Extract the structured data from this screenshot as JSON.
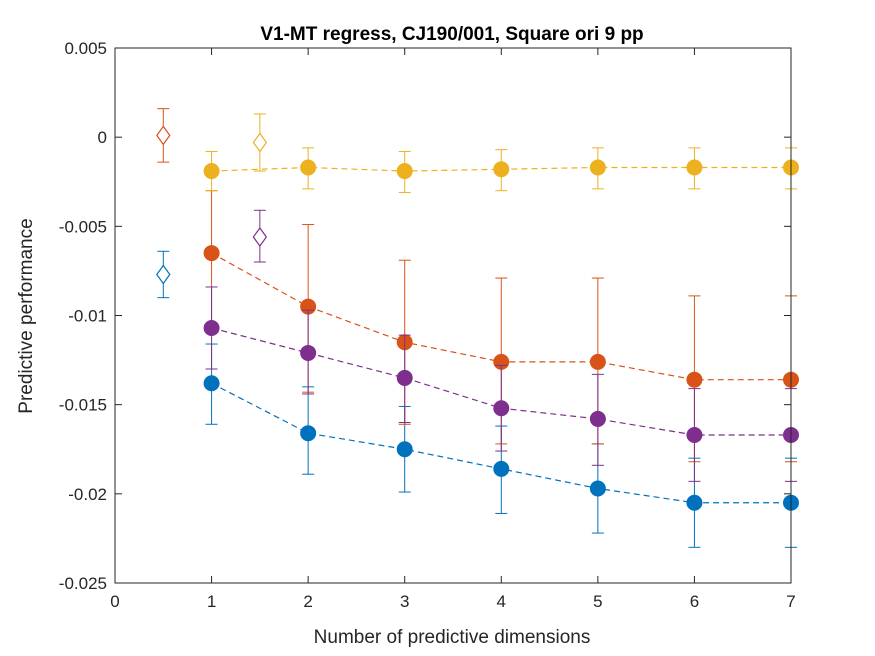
{
  "chart_data": {
    "type": "scatter",
    "title": "V1-MT regress, CJ190/001, Square ori 9 pp",
    "xlabel": "Number of predictive dimensions",
    "ylabel": "Predictive performance",
    "xlim": [
      0,
      7
    ],
    "ylim": [
      -0.025,
      0.005
    ],
    "grid": false,
    "x_ticks": [
      0,
      1,
      2,
      3,
      4,
      5,
      6,
      7
    ],
    "x_tick_labels": [
      "0",
      "1",
      "2",
      "3",
      "4",
      "5",
      "6",
      "7"
    ],
    "y_ticks": [
      0.005,
      0,
      -0.005,
      -0.01,
      -0.015,
      -0.02,
      -0.025
    ],
    "y_tick_labels": [
      "0.005",
      "0",
      "-0.005",
      "-0.01",
      "-0.015",
      "-0.02",
      "-0.025"
    ],
    "x": [
      1,
      2,
      3,
      4,
      5,
      6,
      7
    ],
    "series": [
      {
        "color": "#0072BD",
        "values": [
          -0.0138,
          -0.0166,
          -0.0175,
          -0.0186,
          -0.0197,
          -0.0205,
          -0.0205
        ],
        "err_low": [
          -0.0161,
          -0.0189,
          -0.0199,
          -0.0211,
          -0.0222,
          -0.023,
          -0.023
        ],
        "err_high": [
          -0.0116,
          -0.014,
          -0.0151,
          -0.0162,
          -0.0172,
          -0.018,
          -0.018
        ],
        "reference": {
          "x": 0.5,
          "y": -0.0077,
          "err_low": -0.009,
          "err_high": -0.0064
        }
      },
      {
        "color": "#D95319",
        "values": [
          -0.0065,
          -0.0095,
          -0.0115,
          -0.0126,
          -0.0126,
          -0.0136,
          -0.0136
        ],
        "err_low": [
          -0.0105,
          -0.0143,
          -0.0161,
          -0.0172,
          -0.0172,
          -0.0182,
          -0.0182
        ],
        "err_high": [
          -0.003,
          -0.0049,
          -0.0069,
          -0.0079,
          -0.0079,
          -0.0089,
          -0.0089
        ],
        "reference": {
          "x": 0.5,
          "y": 0.0001,
          "err_low": -0.0014,
          "err_high": 0.0016
        }
      },
      {
        "color": "#EDB120",
        "values": [
          -0.0019,
          -0.0017,
          -0.0019,
          -0.0018,
          -0.0017,
          -0.0017,
          -0.0017
        ],
        "err_low": [
          -0.003,
          -0.0029,
          -0.0031,
          -0.003,
          -0.0029,
          -0.0029,
          -0.0029
        ],
        "err_high": [
          -0.0008,
          -0.0006,
          -0.0008,
          -0.0007,
          -0.0006,
          -0.0006,
          -0.0006
        ],
        "reference": {
          "x": 1.5,
          "y": -0.0003,
          "err_low": -0.0019,
          "err_high": 0.0013
        }
      },
      {
        "color": "#7E2F8E",
        "values": [
          -0.0107,
          -0.0121,
          -0.0135,
          -0.0152,
          -0.0158,
          -0.0167,
          -0.0167
        ],
        "err_low": [
          -0.013,
          -0.0144,
          -0.016,
          -0.0176,
          -0.0184,
          -0.0193,
          -0.0193
        ],
        "err_high": [
          -0.0084,
          -0.0097,
          -0.0111,
          -0.0128,
          -0.0133,
          -0.0141,
          -0.0141
        ],
        "reference": {
          "x": 1.5,
          "y": -0.0056,
          "err_low": -0.007,
          "err_high": -0.0041
        }
      }
    ]
  }
}
